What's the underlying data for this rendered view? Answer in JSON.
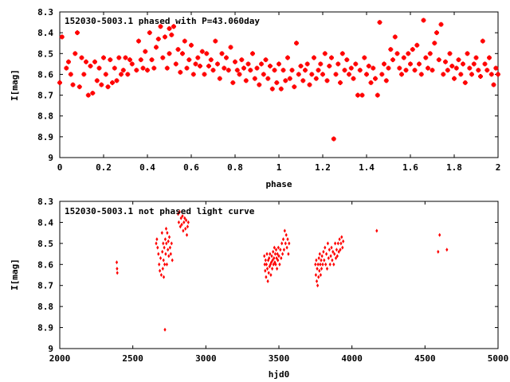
{
  "chart_data": [
    {
      "type": "scatter",
      "title": "152030-5003.1 phased with P=43.060day",
      "xlabel": "phase",
      "ylabel": "I[mag]",
      "xlim": [
        0,
        2
      ],
      "ylim": [
        9,
        8.3
      ],
      "y_inverted": true,
      "xticks": [
        "0",
        "0.2",
        "0.4",
        "0.6",
        "0.8",
        "1",
        "1.2",
        "1.4",
        "1.6",
        "1.8",
        "2"
      ],
      "yticks": [
        "8.3",
        "8.4",
        "8.5",
        "8.6",
        "8.7",
        "8.8",
        "8.9",
        "9"
      ],
      "marker": "star",
      "color": "#ff0000",
      "grid": false,
      "points": [
        [
          0.0,
          8.64
        ],
        [
          0.01,
          8.42
        ],
        [
          0.03,
          8.57
        ],
        [
          0.04,
          8.54
        ],
        [
          0.05,
          8.6
        ],
        [
          0.06,
          8.65
        ],
        [
          0.07,
          8.5
        ],
        [
          0.08,
          8.4
        ],
        [
          0.09,
          8.66
        ],
        [
          0.1,
          8.52
        ],
        [
          0.11,
          8.6
        ],
        [
          0.12,
          8.54
        ],
        [
          0.13,
          8.7
        ],
        [
          0.14,
          8.56
        ],
        [
          0.15,
          8.69
        ],
        [
          0.16,
          8.54
        ],
        [
          0.17,
          8.63
        ],
        [
          0.18,
          8.57
        ],
        [
          0.19,
          8.65
        ],
        [
          0.2,
          8.52
        ],
        [
          0.21,
          8.6
        ],
        [
          0.22,
          8.66
        ],
        [
          0.23,
          8.53
        ],
        [
          0.24,
          8.64
        ],
        [
          0.25,
          8.57
        ],
        [
          0.26,
          8.63
        ],
        [
          0.27,
          8.52
        ],
        [
          0.28,
          8.6
        ],
        [
          0.29,
          8.58
        ],
        [
          0.3,
          8.52
        ],
        [
          0.31,
          8.6
        ],
        [
          0.32,
          8.53
        ],
        [
          0.33,
          8.55
        ],
        [
          0.35,
          8.58
        ],
        [
          0.36,
          8.44
        ],
        [
          0.37,
          8.53
        ],
        [
          0.38,
          8.57
        ],
        [
          0.39,
          8.49
        ],
        [
          0.4,
          8.58
        ],
        [
          0.41,
          8.4
        ],
        [
          0.42,
          8.53
        ],
        [
          0.43,
          8.57
        ],
        [
          0.44,
          8.47
        ],
        [
          0.45,
          8.43
        ],
        [
          0.46,
          8.37
        ],
        [
          0.47,
          8.52
        ],
        [
          0.48,
          8.42
        ],
        [
          0.49,
          8.57
        ],
        [
          0.5,
          8.38
        ],
        [
          0.5,
          8.5
        ],
        [
          0.51,
          8.41
        ],
        [
          0.52,
          8.37
        ],
        [
          0.53,
          8.55
        ],
        [
          0.54,
          8.48
        ],
        [
          0.55,
          8.59
        ],
        [
          0.56,
          8.5
        ],
        [
          0.57,
          8.44
        ],
        [
          0.58,
          8.57
        ],
        [
          0.59,
          8.53
        ],
        [
          0.6,
          8.46
        ],
        [
          0.61,
          8.6
        ],
        [
          0.62,
          8.55
        ],
        [
          0.63,
          8.52
        ],
        [
          0.64,
          8.56
        ],
        [
          0.65,
          8.49
        ],
        [
          0.66,
          8.6
        ],
        [
          0.67,
          8.5
        ],
        [
          0.68,
          8.56
        ],
        [
          0.69,
          8.53
        ],
        [
          0.7,
          8.58
        ],
        [
          0.71,
          8.44
        ],
        [
          0.72,
          8.55
        ],
        [
          0.73,
          8.62
        ],
        [
          0.74,
          8.5
        ],
        [
          0.75,
          8.57
        ],
        [
          0.76,
          8.52
        ],
        [
          0.77,
          8.58
        ],
        [
          0.78,
          8.47
        ],
        [
          0.79,
          8.64
        ],
        [
          0.8,
          8.54
        ],
        [
          0.81,
          8.58
        ],
        [
          0.82,
          8.6
        ],
        [
          0.83,
          8.53
        ],
        [
          0.84,
          8.57
        ],
        [
          0.85,
          8.63
        ],
        [
          0.86,
          8.55
        ],
        [
          0.87,
          8.58
        ],
        [
          0.88,
          8.5
        ],
        [
          0.89,
          8.62
        ],
        [
          0.9,
          8.57
        ],
        [
          0.91,
          8.65
        ],
        [
          0.92,
          8.55
        ],
        [
          0.93,
          8.6
        ],
        [
          0.94,
          8.53
        ],
        [
          0.95,
          8.62
        ],
        [
          0.96,
          8.56
        ],
        [
          0.97,
          8.67
        ],
        [
          0.98,
          8.58
        ],
        [
          0.99,
          8.64
        ],
        [
          1.0,
          8.55
        ],
        [
          1.01,
          8.67
        ],
        [
          1.02,
          8.58
        ],
        [
          1.03,
          8.63
        ],
        [
          1.04,
          8.52
        ],
        [
          1.05,
          8.62
        ],
        [
          1.06,
          8.58
        ],
        [
          1.07,
          8.66
        ],
        [
          1.08,
          8.45
        ],
        [
          1.09,
          8.6
        ],
        [
          1.1,
          8.56
        ],
        [
          1.11,
          8.63
        ],
        [
          1.12,
          8.58
        ],
        [
          1.13,
          8.55
        ],
        [
          1.14,
          8.65
        ],
        [
          1.15,
          8.6
        ],
        [
          1.16,
          8.52
        ],
        [
          1.17,
          8.62
        ],
        [
          1.18,
          8.58
        ],
        [
          1.19,
          8.55
        ],
        [
          1.2,
          8.6
        ],
        [
          1.21,
          8.5
        ],
        [
          1.22,
          8.63
        ],
        [
          1.23,
          8.56
        ],
        [
          1.24,
          8.52
        ],
        [
          1.25,
          8.91
        ],
        [
          1.26,
          8.6
        ],
        [
          1.27,
          8.55
        ],
        [
          1.28,
          8.64
        ],
        [
          1.29,
          8.5
        ],
        [
          1.3,
          8.58
        ],
        [
          1.31,
          8.53
        ],
        [
          1.32,
          8.6
        ],
        [
          1.33,
          8.57
        ],
        [
          1.34,
          8.62
        ],
        [
          1.35,
          8.55
        ],
        [
          1.36,
          8.7
        ],
        [
          1.37,
          8.58
        ],
        [
          1.38,
          8.7
        ],
        [
          1.39,
          8.52
        ],
        [
          1.4,
          8.6
        ],
        [
          1.41,
          8.56
        ],
        [
          1.42,
          8.64
        ],
        [
          1.43,
          8.57
        ],
        [
          1.44,
          8.62
        ],
        [
          1.45,
          8.7
        ],
        [
          1.46,
          8.35
        ],
        [
          1.47,
          8.6
        ],
        [
          1.48,
          8.55
        ],
        [
          1.49,
          8.63
        ],
        [
          1.5,
          8.57
        ],
        [
          1.51,
          8.48
        ],
        [
          1.52,
          8.53
        ],
        [
          1.53,
          8.42
        ],
        [
          1.54,
          8.5
        ],
        [
          1.55,
          8.57
        ],
        [
          1.56,
          8.6
        ],
        [
          1.57,
          8.52
        ],
        [
          1.58,
          8.58
        ],
        [
          1.59,
          8.5
        ],
        [
          1.6,
          8.55
        ],
        [
          1.61,
          8.48
        ],
        [
          1.62,
          8.58
        ],
        [
          1.63,
          8.46
        ],
        [
          1.64,
          8.55
        ],
        [
          1.65,
          8.6
        ],
        [
          1.66,
          8.34
        ],
        [
          1.67,
          8.52
        ],
        [
          1.68,
          8.57
        ],
        [
          1.69,
          8.5
        ],
        [
          1.7,
          8.58
        ],
        [
          1.71,
          8.45
        ],
        [
          1.72,
          8.4
        ],
        [
          1.73,
          8.53
        ],
        [
          1.74,
          8.36
        ],
        [
          1.75,
          8.6
        ],
        [
          1.76,
          8.54
        ],
        [
          1.77,
          8.58
        ],
        [
          1.78,
          8.5
        ],
        [
          1.79,
          8.56
        ],
        [
          1.8,
          8.62
        ],
        [
          1.81,
          8.57
        ],
        [
          1.82,
          8.53
        ],
        [
          1.83,
          8.6
        ],
        [
          1.84,
          8.55
        ],
        [
          1.85,
          8.64
        ],
        [
          1.86,
          8.5
        ],
        [
          1.87,
          8.57
        ],
        [
          1.88,
          8.6
        ],
        [
          1.89,
          8.55
        ],
        [
          1.9,
          8.52
        ],
        [
          1.91,
          8.58
        ],
        [
          1.92,
          8.61
        ],
        [
          1.93,
          8.44
        ],
        [
          1.94,
          8.55
        ],
        [
          1.95,
          8.58
        ],
        [
          1.96,
          8.52
        ],
        [
          1.97,
          8.6
        ],
        [
          1.98,
          8.65
        ],
        [
          1.99,
          8.57
        ],
        [
          2.0,
          8.6
        ]
      ]
    },
    {
      "type": "scatter",
      "title": "152030-5003.1 not phased light curve",
      "xlabel": "hjd0",
      "ylabel": "I[mag]",
      "xlim": [
        2000,
        5000
      ],
      "ylim": [
        9,
        8.3
      ],
      "y_inverted": true,
      "xticks": [
        "2000",
        "2500",
        "3000",
        "3500",
        "4000",
        "4500",
        "5000"
      ],
      "yticks": [
        "8.3",
        "8.4",
        "8.5",
        "8.6",
        "8.7",
        "8.8",
        "8.9",
        "9"
      ],
      "marker": "diamond",
      "color": "#ff0000",
      "grid": false,
      "points": [
        [
          2390,
          8.59
        ],
        [
          2392,
          8.62
        ],
        [
          2394,
          8.64
        ],
        [
          2660,
          8.5
        ],
        [
          2665,
          8.48
        ],
        [
          2670,
          8.52
        ],
        [
          2675,
          8.55
        ],
        [
          2680,
          8.6
        ],
        [
          2685,
          8.63
        ],
        [
          2690,
          8.57
        ],
        [
          2695,
          8.65
        ],
        [
          2700,
          8.45
        ],
        [
          2702,
          8.54
        ],
        [
          2705,
          8.62
        ],
        [
          2708,
          8.5
        ],
        [
          2710,
          8.58
        ],
        [
          2712,
          8.66
        ],
        [
          2715,
          8.52
        ],
        [
          2718,
          8.6
        ],
        [
          2720,
          8.91
        ],
        [
          2722,
          8.48
        ],
        [
          2725,
          8.55
        ],
        [
          2728,
          8.43
        ],
        [
          2730,
          8.5
        ],
        [
          2733,
          8.6
        ],
        [
          2736,
          8.45
        ],
        [
          2740,
          8.53
        ],
        [
          2743,
          8.49
        ],
        [
          2746,
          8.56
        ],
        [
          2750,
          8.47
        ],
        [
          2755,
          8.52
        ],
        [
          2760,
          8.55
        ],
        [
          2765,
          8.5
        ],
        [
          2770,
          8.58
        ],
        [
          2810,
          8.36
        ],
        [
          2815,
          8.4
        ],
        [
          2820,
          8.35
        ],
        [
          2825,
          8.42
        ],
        [
          2830,
          8.38
        ],
        [
          2835,
          8.41
        ],
        [
          2840,
          8.37
        ],
        [
          2845,
          8.44
        ],
        [
          2850,
          8.4
        ],
        [
          2855,
          8.38
        ],
        [
          2860,
          8.43
        ],
        [
          2865,
          8.39
        ],
        [
          2870,
          8.46
        ],
        [
          2875,
          8.42
        ],
        [
          2880,
          8.4
        ],
        [
          3400,
          8.56
        ],
        [
          3403,
          8.6
        ],
        [
          3406,
          8.63
        ],
        [
          3409,
          8.58
        ],
        [
          3412,
          8.66
        ],
        [
          3415,
          8.6
        ],
        [
          3418,
          8.55
        ],
        [
          3421,
          8.62
        ],
        [
          3424,
          8.68
        ],
        [
          3427,
          8.58
        ],
        [
          3430,
          8.64
        ],
        [
          3433,
          8.57
        ],
        [
          3436,
          8.61
        ],
        [
          3439,
          8.55
        ],
        [
          3442,
          8.6
        ],
        [
          3445,
          8.65
        ],
        [
          3448,
          8.59
        ],
        [
          3451,
          8.56
        ],
        [
          3454,
          8.62
        ],
        [
          3457,
          8.58
        ],
        [
          3460,
          8.54
        ],
        [
          3463,
          8.6
        ],
        [
          3466,
          8.57
        ],
        [
          3469,
          8.52
        ],
        [
          3472,
          8.59
        ],
        [
          3475,
          8.55
        ],
        [
          3478,
          8.6
        ],
        [
          3481,
          8.53
        ],
        [
          3484,
          8.57
        ],
        [
          3487,
          8.62
        ],
        [
          3490,
          8.55
        ],
        [
          3493,
          8.58
        ],
        [
          3496,
          8.52
        ],
        [
          3500,
          8.56
        ],
        [
          3505,
          8.6
        ],
        [
          3510,
          8.53
        ],
        [
          3515,
          8.57
        ],
        [
          3520,
          8.5
        ],
        [
          3525,
          8.55
        ],
        [
          3530,
          8.48
        ],
        [
          3535,
          8.53
        ],
        [
          3540,
          8.44
        ],
        [
          3545,
          8.5
        ],
        [
          3550,
          8.46
        ],
        [
          3555,
          8.52
        ],
        [
          3560,
          8.48
        ],
        [
          3565,
          8.55
        ],
        [
          3570,
          8.5
        ],
        [
          3750,
          8.6
        ],
        [
          3753,
          8.65
        ],
        [
          3756,
          8.58
        ],
        [
          3759,
          8.68
        ],
        [
          3762,
          8.62
        ],
        [
          3765,
          8.7
        ],
        [
          3768,
          8.6
        ],
        [
          3771,
          8.66
        ],
        [
          3774,
          8.57
        ],
        [
          3777,
          8.63
        ],
        [
          3780,
          8.55
        ],
        [
          3783,
          8.6
        ],
        [
          3786,
          8.65
        ],
        [
          3789,
          8.58
        ],
        [
          3792,
          8.62
        ],
        [
          3795,
          8.56
        ],
        [
          3800,
          8.6
        ],
        [
          3805,
          8.54
        ],
        [
          3810,
          8.58
        ],
        [
          3815,
          8.52
        ],
        [
          3820,
          8.6
        ],
        [
          3825,
          8.55
        ],
        [
          3830,
          8.62
        ],
        [
          3835,
          8.5
        ],
        [
          3840,
          8.57
        ],
        [
          3845,
          8.53
        ],
        [
          3850,
          8.6
        ],
        [
          3855,
          8.56
        ],
        [
          3860,
          8.52
        ],
        [
          3865,
          8.58
        ],
        [
          3870,
          8.54
        ],
        [
          3875,
          8.6
        ],
        [
          3880,
          8.55
        ],
        [
          3885,
          8.5
        ],
        [
          3890,
          8.57
        ],
        [
          3895,
          8.53
        ],
        [
          3900,
          8.56
        ],
        [
          3905,
          8.5
        ],
        [
          3910,
          8.54
        ],
        [
          3915,
          8.48
        ],
        [
          3920,
          8.53
        ],
        [
          3925,
          8.5
        ],
        [
          3930,
          8.47
        ],
        [
          3935,
          8.52
        ],
        [
          3940,
          8.49
        ],
        [
          4170,
          8.44
        ],
        [
          4590,
          8.54
        ],
        [
          4600,
          8.46
        ],
        [
          4650,
          8.53
        ]
      ]
    }
  ]
}
